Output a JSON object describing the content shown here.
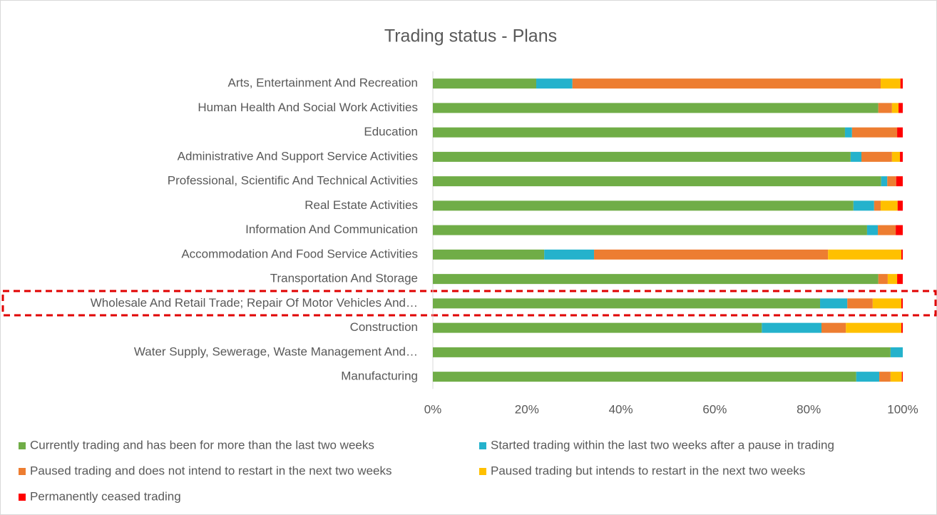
{
  "chart_data": {
    "type": "stacked-bar-horizontal",
    "title": "Trading status - Plans",
    "categories": [
      "Arts, Entertainment And Recreation",
      "Human Health And Social Work Activities",
      "Education",
      "Administrative And Support Service Activities",
      "Professional, Scientific And Technical Activities",
      "Real Estate Activities",
      "Information And Communication",
      "Accommodation And Food Service Activities",
      "Transportation And Storage",
      "Wholesale And Retail Trade; Repair Of Motor Vehicles And…",
      "Construction",
      "Water Supply, Sewerage, Waste Management And…",
      "Manufacturing"
    ],
    "series": [
      {
        "name": "Currently trading and has been for more than the last two weeks",
        "color": "#70ad47",
        "values": [
          22.0,
          94.8,
          87.7,
          88.9,
          95.4,
          89.5,
          92.4,
          23.7,
          94.8,
          82.4,
          70.0,
          97.4,
          90.1
        ]
      },
      {
        "name": "Started trading within the last two weeks after a pause in trading",
        "color": "#24b2cc",
        "values": [
          7.7,
          0,
          1.5,
          2.3,
          1.3,
          4.4,
          2.3,
          10.6,
          0,
          5.8,
          12.7,
          2.6,
          4.9
        ]
      },
      {
        "name": "Paused trading and does not intend to restart in the next two weeks",
        "color": "#ed7d31",
        "values": [
          65.6,
          2.9,
          9.6,
          6.5,
          1.9,
          1.4,
          3.8,
          49.8,
          2.0,
          5.4,
          5.2,
          0,
          2.4
        ]
      },
      {
        "name": "Paused trading but intends to restart in the next two weeks",
        "color": "#ffc000",
        "values": [
          4.2,
          1.4,
          0,
          1.7,
          0,
          3.6,
          0,
          15.6,
          2.0,
          6.1,
          11.8,
          0,
          2.4
        ]
      },
      {
        "name": "Permanently ceased trading",
        "color": "#ff0000",
        "values": [
          0.5,
          0.9,
          1.2,
          0.6,
          1.4,
          1.1,
          1.5,
          0.3,
          1.2,
          0.3,
          0.3,
          0,
          0.2
        ]
      }
    ],
    "xlim": [
      0,
      100
    ],
    "xticks": [
      {
        "value": 0,
        "label": "0%"
      },
      {
        "value": 20,
        "label": "20%"
      },
      {
        "value": 40,
        "label": "40%"
      },
      {
        "value": 60,
        "label": "60%"
      },
      {
        "value": 80,
        "label": "80%"
      },
      {
        "value": 100,
        "label": "100%"
      }
    ],
    "grid": false,
    "legend": "bottom"
  }
}
